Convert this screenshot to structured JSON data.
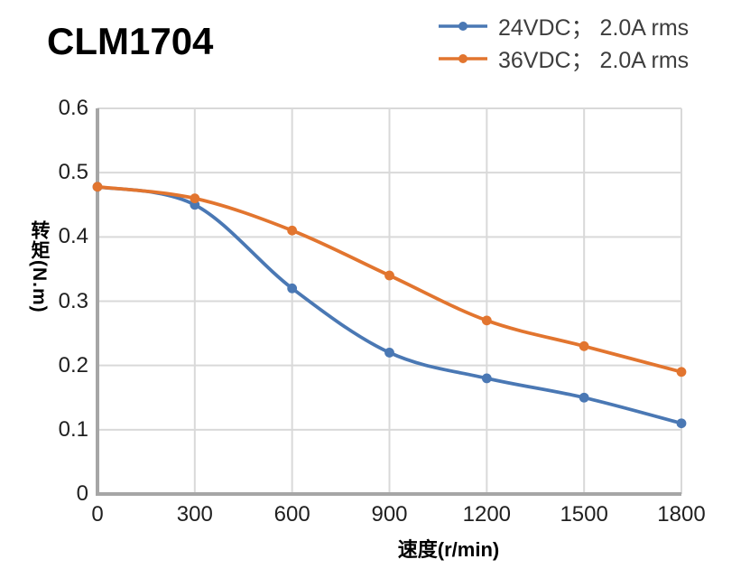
{
  "title": "CLM1704",
  "chart_data": {
    "type": "line",
    "x": [
      0,
      300,
      600,
      900,
      1200,
      1500,
      1800
    ],
    "series": [
      {
        "name": "24VDC； 2.0A rms",
        "color": "#4a78b4",
        "values": [
          0.478,
          0.45,
          0.32,
          0.22,
          0.18,
          0.15,
          0.11
        ]
      },
      {
        "name": "36VDC； 2.0A rms",
        "color": "#e2752f",
        "values": [
          0.478,
          0.46,
          0.41,
          0.34,
          0.27,
          0.23,
          0.19
        ]
      }
    ],
    "xlabel": "速度(r/min)",
    "ylabel": "转矩(N.m)",
    "xlim": [
      0,
      1800
    ],
    "ylim": [
      0,
      0.6
    ],
    "x_ticks": [
      0,
      300,
      600,
      900,
      1200,
      1500,
      1800
    ],
    "y_ticks": [
      0,
      0.1,
      0.2,
      0.3,
      0.4,
      0.5,
      0.6
    ],
    "grid": true,
    "line_style": "smooth",
    "marker": "circle",
    "legend_position": "top-right"
  },
  "colors": {
    "grid": "#d9d9d9",
    "axis": "#a6a6a6",
    "tick_text": "#1f1f1f",
    "legend_text": "#3d3d3d"
  }
}
